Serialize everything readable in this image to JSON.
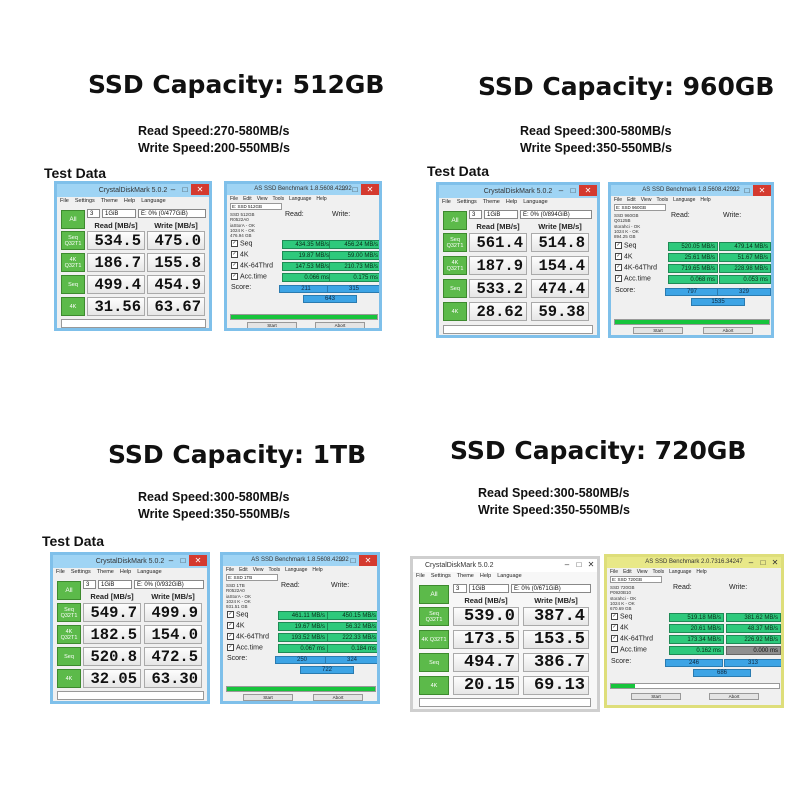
{
  "panels": [
    {
      "capacity": "SSD Capacity: 512GB",
      "read_speed": "Read Speed:270-580MB/s",
      "write_speed": "Write Speed:200-550MB/s",
      "test_data_label": "Test Data",
      "cdm": {
        "title": "CrystalDiskMark 5.0.2",
        "menu": [
          "File",
          "Settings",
          "Theme",
          "Help",
          "Language"
        ],
        "count": "3",
        "size": "1GiB",
        "drive": "E: 0% (0/477GiB)",
        "all_label": "All",
        "read_header": "Read [MB/s]",
        "write_header": "Write [MB/s]",
        "rows": [
          {
            "label": "Seq Q32T1",
            "read": "534.5",
            "write": "475.0"
          },
          {
            "label": "4K Q32T1",
            "read": "186.7",
            "write": "155.8"
          },
          {
            "label": "Seq",
            "read": "499.4",
            "write": "454.9"
          },
          {
            "label": "4K",
            "read": "31.56",
            "write": "63.67"
          }
        ]
      },
      "asssd": {
        "title": "AS SSD Benchmark 1.8.5608.42992",
        "menu": [
          "File",
          "Edit",
          "View",
          "Tools",
          "Language",
          "Help"
        ],
        "drive": "E: SSD 512GB",
        "info": [
          "SSD 512GB",
          "R0522A0",
          "iaStorA - OK",
          "1024 K - OK",
          "476.94 GB"
        ],
        "read_header": "Read:",
        "write_header": "Write:",
        "rows": [
          {
            "label": "Seq",
            "read": "434.35 MB/s",
            "write": "456.24 MB/s"
          },
          {
            "label": "4K",
            "read": "19.87 MB/s",
            "write": "59.00 MB/s"
          },
          {
            "label": "4K-64Thrd",
            "read": "147.53 MB/s",
            "write": "210.73 MB/s"
          },
          {
            "label": "Acc.time",
            "read": "0.066 ms",
            "write": "0.175 ms"
          }
        ],
        "score_label": "Score:",
        "score_read": "211",
        "score_write": "315",
        "score_total": "643",
        "start_label": "Start",
        "abort_label": "Abort"
      }
    },
    {
      "capacity": "SSD Capacity: 960GB",
      "read_speed": "Read Speed:300-580MB/s",
      "write_speed": "Write Speed:350-550MB/s",
      "test_data_label": "Test Data",
      "cdm": {
        "title": "CrystalDiskMark 5.0.2",
        "menu": [
          "File",
          "Settings",
          "Theme",
          "Help",
          "Language"
        ],
        "count": "3",
        "size": "1GiB",
        "drive": "E: 0% (0/894GiB)",
        "all_label": "All",
        "read_header": "Read [MB/s]",
        "write_header": "Write [MB/s]",
        "rows": [
          {
            "label": "Seq Q32T1",
            "read": "561.4",
            "write": "514.8"
          },
          {
            "label": "4K Q32T1",
            "read": "187.9",
            "write": "154.4"
          },
          {
            "label": "Seq",
            "read": "533.2",
            "write": "474.4"
          },
          {
            "label": "4K",
            "read": "28.62",
            "write": "59.38"
          }
        ]
      },
      "asssd": {
        "title": "AS SSD Benchmark 1.8.5608.42992",
        "menu": [
          "File",
          "Edit",
          "View",
          "Tools",
          "Language",
          "Help"
        ],
        "drive": "E: SSD 960GB",
        "info": [
          "SSD 960GB",
          "Q0125B",
          "storahci - OK",
          "1024 K - OK",
          "894.25 GB"
        ],
        "read_header": "Read:",
        "write_header": "Write:",
        "rows": [
          {
            "label": "Seq",
            "read": "520.05 MB/s",
            "write": "479.14 MB/s"
          },
          {
            "label": "4K",
            "read": "25.61 MB/s",
            "write": "51.67 MB/s"
          },
          {
            "label": "4K-64Thrd",
            "read": "719.65 MB/s",
            "write": "228.98 MB/s"
          },
          {
            "label": "Acc.time",
            "read": "0.068 ms",
            "write": "0.053 ms"
          }
        ],
        "score_label": "Score:",
        "score_read": "797",
        "score_write": "329",
        "score_total": "1535",
        "start_label": "Start",
        "abort_label": "Abort"
      }
    },
    {
      "capacity": "SSD Capacity: 1TB",
      "read_speed": "Read Speed:300-580MB/s",
      "write_speed": "Write Speed:350-550MB/s",
      "test_data_label": "Test Data",
      "cdm": {
        "title": "CrystalDiskMark 5.0.2",
        "menu": [
          "File",
          "Settings",
          "Theme",
          "Help",
          "Language"
        ],
        "count": "3",
        "size": "1GiB",
        "drive": "E: 0% (0/932GiB)",
        "all_label": "All",
        "read_header": "Read [MB/s]",
        "write_header": "Write [MB/s]",
        "rows": [
          {
            "label": "Seq Q32T1",
            "read": "549.7",
            "write": "499.9"
          },
          {
            "label": "4K Q32T1",
            "read": "182.5",
            "write": "154.0"
          },
          {
            "label": "Seq",
            "read": "520.8",
            "write": "472.5"
          },
          {
            "label": "4K",
            "read": "32.05",
            "write": "63.30"
          }
        ]
      },
      "asssd": {
        "title": "AS SSD Benchmark 1.8.5608.42992",
        "menu": [
          "File",
          "Edit",
          "View",
          "Tools",
          "Language",
          "Help"
        ],
        "drive": "E: SSD 1TB",
        "info": [
          "SSD 1TB",
          "R0522A0",
          "iaStorA - OK",
          "1024 K - OK",
          "931.51 GB"
        ],
        "read_header": "Read:",
        "write_header": "Write:",
        "rows": [
          {
            "label": "Seq",
            "read": "461.11 MB/s",
            "write": "450.15 MB/s"
          },
          {
            "label": "4K",
            "read": "19.67 MB/s",
            "write": "56.32 MB/s"
          },
          {
            "label": "4K-64Thrd",
            "read": "193.52 MB/s",
            "write": "222.33 MB/s"
          },
          {
            "label": "Acc.time",
            "read": "0.067 ms",
            "write": "0.184 ms"
          }
        ],
        "score_label": "Score:",
        "score_read": "250",
        "score_write": "324",
        "score_total": "722",
        "start_label": "Start",
        "abort_label": "Abort"
      }
    },
    {
      "capacity": "SSD Capacity: 720GB",
      "read_speed": "Read Speed:300-580MB/s",
      "write_speed": "Write Speed:350-550MB/s",
      "test_data_label": "",
      "cdm": {
        "title": "CrystalDiskMark 5.0.2",
        "menu": [
          "File",
          "Settings",
          "Theme",
          "Help",
          "Language"
        ],
        "count": "3",
        "size": "1GiB",
        "drive": "E: 0% (0/671GiB)",
        "all_label": "All",
        "read_header": "Read [MB/s]",
        "write_header": "Write [MB/s]",
        "rows": [
          {
            "label": "Seq Q32T1",
            "read": "539.0",
            "write": "387.4"
          },
          {
            "label": "4K Q32T1",
            "read": "173.5",
            "write": "153.5"
          },
          {
            "label": "Seq",
            "read": "494.7",
            "write": "386.7"
          },
          {
            "label": "4K",
            "read": "20.15",
            "write": "69.13"
          }
        ]
      },
      "asssd": {
        "title": "AS SSD Benchmark 2.0.7316.34247",
        "menu": [
          "File",
          "Edit",
          "View",
          "Tools",
          "Language",
          "Help"
        ],
        "drive": "E: SSD 720GB",
        "info": [
          "SSD 720GB",
          "P0920B10",
          "storahci - OK",
          "1024 K - OK",
          "670.69 GB"
        ],
        "read_header": "Read:",
        "write_header": "Write:",
        "rows": [
          {
            "label": "Seq",
            "read": "519.18 MB/s",
            "write": "381.62 MB/s"
          },
          {
            "label": "4K",
            "read": "20.61 MB/s",
            "write": "48.37 MB/s"
          },
          {
            "label": "4K-64Thrd",
            "read": "173.34 MB/s",
            "write": "226.92 MB/s"
          },
          {
            "label": "Acc.time",
            "read": "0.162 ms",
            "write": "0.000 ms"
          }
        ],
        "score_label": "Score:",
        "score_read": "246",
        "score_write": "313",
        "score_total": "686",
        "start_label": "Start",
        "abort_label": "Abort"
      }
    }
  ]
}
